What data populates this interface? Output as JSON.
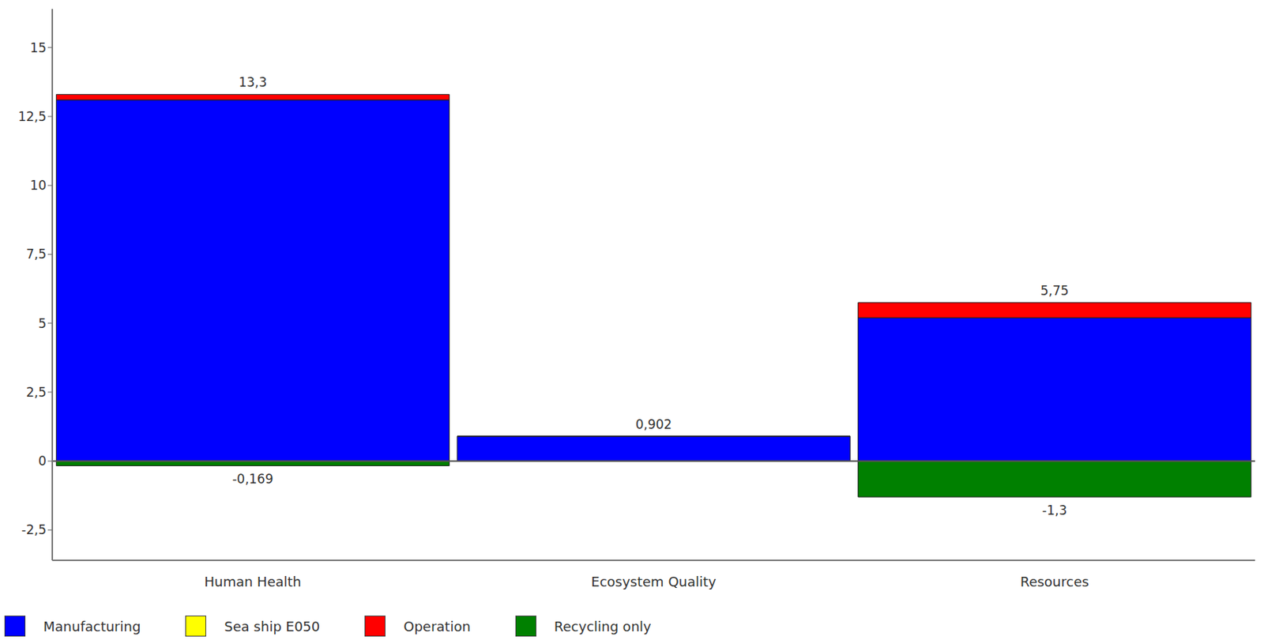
{
  "chart_data": {
    "type": "bar",
    "stacked": true,
    "categories": [
      "Human Health",
      "Ecosystem Quality",
      "Resources"
    ],
    "series": [
      {
        "name": "Manufacturing",
        "color": "#0000ff",
        "values": [
          13.1,
          0.9,
          5.2
        ]
      },
      {
        "name": "Sea ship E050",
        "color": "#ffff00",
        "values": [
          0,
          0,
          0
        ]
      },
      {
        "name": "Operation",
        "color": "#ff0000",
        "values": [
          0.2,
          0.002,
          0.55
        ]
      },
      {
        "name": "Recycling only",
        "color": "#008000",
        "values": [
          -0.169,
          0,
          -1.3
        ]
      }
    ],
    "positive_totals": [
      13.3,
      0.902,
      5.75
    ],
    "positive_total_labels": [
      "13,3",
      "0,902",
      "5,75"
    ],
    "negative_totals": [
      -0.169,
      null,
      -1.3
    ],
    "negative_total_labels": [
      "-0,169",
      null,
      "-1,3"
    ],
    "ylim": [
      -3.6,
      16.4
    ],
    "yticks": [
      {
        "value": -2.5,
        "label": "-2,5"
      },
      0,
      {
        "value": 2.5,
        "label": "2,5"
      },
      5,
      {
        "value": 7.5,
        "label": "7,5"
      },
      10,
      {
        "value": 12.5,
        "label": "12,5"
      },
      15
    ],
    "grid": false,
    "legend": "bottom-left",
    "data_labels": true
  }
}
